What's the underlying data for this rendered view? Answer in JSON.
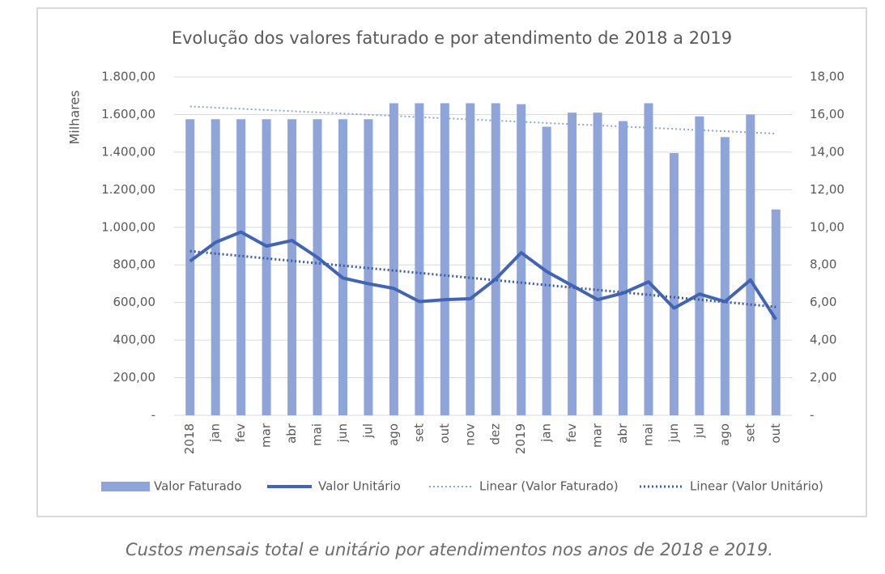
{
  "chart_data": {
    "type": "bar",
    "title": "Evolução dos valores faturado e por atendimento de 2018 a 2019",
    "y_label": "Milhares",
    "caption": "Custos mensais total e unitário por atendimentos nos anos de 2018 e 2019.",
    "categories": [
      "2018",
      "jan",
      "fev",
      "mar",
      "abr",
      "mai",
      "jun",
      "jul",
      "ago",
      "set",
      "out",
      "nov",
      "dez",
      "2019",
      "jan",
      "fev",
      "mar",
      "abr",
      "mai",
      "jun",
      "jul",
      "ago",
      "set",
      "out"
    ],
    "series": [
      {
        "name": "Valor Faturado",
        "type": "bar",
        "color": "#8fa4d8",
        "values": [
          1575,
          1575,
          1575,
          1575,
          1575,
          1575,
          1575,
          1575,
          1660,
          1660,
          1660,
          1660,
          1660,
          1655,
          1535,
          1610,
          1610,
          1565,
          1660,
          1395,
          1590,
          1480,
          1600,
          1095
        ],
        "trendline": {
          "name": "Linear (Valor Faturado)",
          "color": "#8fa4d8"
        }
      },
      {
        "name": "Valor Unitário",
        "type": "line",
        "axis": "y2",
        "color": "#4264b3",
        "values": [
          8.2,
          9.2,
          9.75,
          9.0,
          9.3,
          8.4,
          7.3,
          7.0,
          6.75,
          6.05,
          6.15,
          6.2,
          7.25,
          8.65,
          7.65,
          6.9,
          6.15,
          6.5,
          7.1,
          5.7,
          6.45,
          6.05,
          7.2,
          5.1
        ],
        "trendline": {
          "name": "Linear (Valor Unitário)",
          "color": "#3a5ca8"
        }
      }
    ],
    "ylim": [
      0,
      1800
    ],
    "yticks": [
      {
        "value": 0,
        "label": "-"
      },
      {
        "value": 200,
        "label": "200,00"
      },
      {
        "value": 400,
        "label": "400,00"
      },
      {
        "value": 600,
        "label": "600,00"
      },
      {
        "value": 800,
        "label": "800,00"
      },
      {
        "value": 1000,
        "label": "1.000,00"
      },
      {
        "value": 1200,
        "label": "1.200,00"
      },
      {
        "value": 1400,
        "label": "1.400,00"
      },
      {
        "value": 1600,
        "label": "1.600,00"
      },
      {
        "value": 1800,
        "label": "1.800,00"
      }
    ],
    "y2lim": [
      0,
      18
    ],
    "y2ticks": [
      {
        "value": 0,
        "label": "-"
      },
      {
        "value": 2,
        "label": "2,00"
      },
      {
        "value": 4,
        "label": "4,00"
      },
      {
        "value": 6,
        "label": "6,00"
      },
      {
        "value": 8,
        "label": "8,00"
      },
      {
        "value": 10,
        "label": "10,00"
      },
      {
        "value": 12,
        "label": "12,00"
      },
      {
        "value": 14,
        "label": "14,00"
      },
      {
        "value": 16,
        "label": "16,00"
      },
      {
        "value": 18,
        "label": "18,00"
      }
    ],
    "grid": true
  }
}
